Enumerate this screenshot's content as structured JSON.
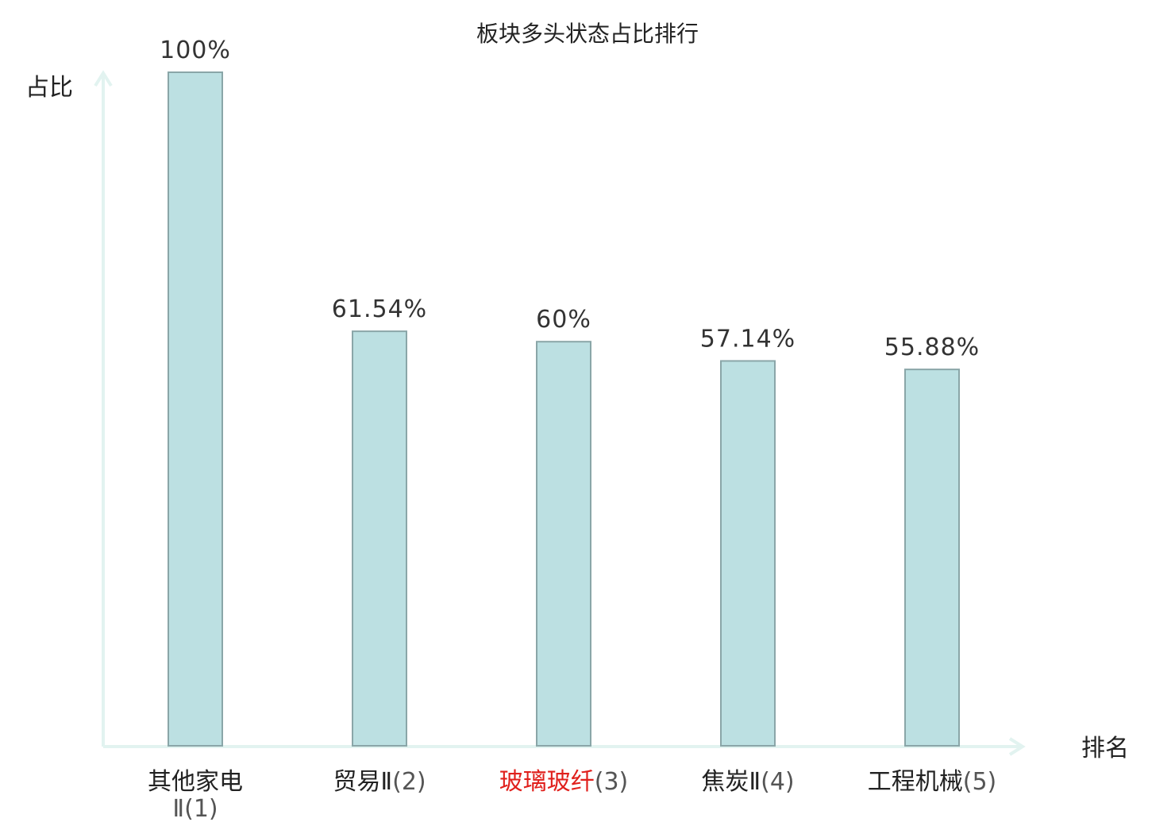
{
  "chart_data": {
    "type": "bar",
    "title": "板块多头状态占比排行",
    "ylabel": "占比",
    "xlabel": "排名",
    "ylim": [
      0,
      100
    ],
    "unit": "%",
    "categories": [
      {
        "name": "其他家电Ⅱ",
        "rank": "(1)",
        "value": 100,
        "label": "100%",
        "highlight": false
      },
      {
        "name": "贸易Ⅱ",
        "rank": "(2)",
        "value": 61.54,
        "label": "61.54%",
        "highlight": false
      },
      {
        "name": "玻璃玻纤",
        "rank": "(3)",
        "value": 60,
        "label": "60%",
        "highlight": true
      },
      {
        "name": "焦炭Ⅱ",
        "rank": "(4)",
        "value": 57.14,
        "label": "57.14%",
        "highlight": false
      },
      {
        "name": "工程机械",
        "rank": "(5)",
        "value": 55.88,
        "label": "55.88%",
        "highlight": false
      }
    ],
    "colors": {
      "bar_fill": "#bce0e2",
      "bar_stroke": "#8aa6a8",
      "axis": "#e2f3f0",
      "text": "#222222",
      "highlight_text": "#e0201c"
    }
  }
}
